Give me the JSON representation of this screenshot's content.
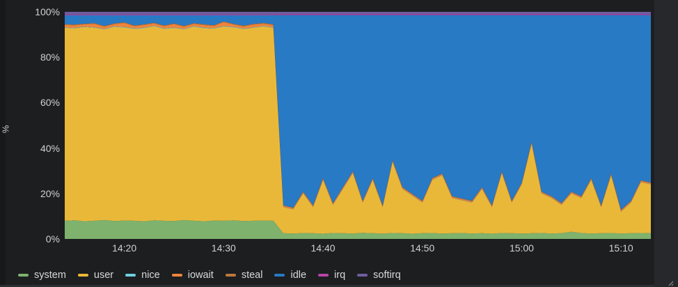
{
  "panel": {
    "background": "#1c1e20",
    "text_color": "#d0d1d2"
  },
  "y_axis": {
    "label": "%",
    "ticks": [
      "0%",
      "20%",
      "40%",
      "60%",
      "80%",
      "100%"
    ]
  },
  "x_axis": {
    "ticks": [
      "14:20",
      "14:30",
      "14:40",
      "14:50",
      "15:00",
      "15:10"
    ]
  },
  "legend": {
    "items": [
      {
        "label": "system",
        "color": "#7EB26D"
      },
      {
        "label": "user",
        "color": "#EAB839"
      },
      {
        "label": "nice",
        "color": "#6ED0E0"
      },
      {
        "label": "iowait",
        "color": "#EF843C"
      },
      {
        "label": "steal",
        "color": "#BF783A"
      },
      {
        "label": "idle",
        "color": "#287AC5"
      },
      {
        "label": "irq",
        "color": "#BA43A9"
      },
      {
        "label": "softirq",
        "color": "#705DA0"
      }
    ]
  },
  "chart_data": {
    "type": "area",
    "stacked": true,
    "unit": "percent",
    "title": "",
    "xlabel": "",
    "ylabel": "%",
    "ylim": [
      0,
      100
    ],
    "grid": false,
    "legend_position": "bottom",
    "y_ticks": [
      0,
      20,
      40,
      60,
      80,
      100
    ],
    "x_ticks": [
      "14:20",
      "14:30",
      "14:40",
      "14:50",
      "15:00",
      "15:10"
    ],
    "x": [
      "14:14",
      "14:15",
      "14:16",
      "14:17",
      "14:18",
      "14:19",
      "14:20",
      "14:21",
      "14:22",
      "14:23",
      "14:24",
      "14:25",
      "14:26",
      "14:27",
      "14:28",
      "14:29",
      "14:30",
      "14:31",
      "14:32",
      "14:33",
      "14:34",
      "14:35",
      "14:36",
      "14:37",
      "14:38",
      "14:39",
      "14:40",
      "14:41",
      "14:42",
      "14:43",
      "14:44",
      "14:45",
      "14:46",
      "14:47",
      "14:48",
      "14:49",
      "14:50",
      "14:51",
      "14:52",
      "14:53",
      "14:54",
      "14:55",
      "14:56",
      "14:57",
      "14:58",
      "14:59",
      "15:00",
      "15:01",
      "15:02",
      "15:03",
      "15:04",
      "15:05",
      "15:06",
      "15:07",
      "15:08",
      "15:09",
      "15:10",
      "15:11",
      "15:12",
      "15:13"
    ],
    "series": [
      {
        "name": "system",
        "color": "#7EB26D",
        "values": [
          8,
          8.2,
          7.8,
          8,
          8.3,
          7.9,
          8.1,
          8,
          7.8,
          8.2,
          8,
          7.9,
          8.3,
          8,
          7.8,
          8.1,
          8,
          8.2,
          7.9,
          8,
          8.1,
          8,
          2.5,
          2.4,
          2.6,
          2.5,
          2.3,
          2.6,
          2.5,
          2.4,
          2.7,
          2.5,
          2.4,
          2.6,
          2.5,
          2.3,
          2.5,
          2.6,
          2.4,
          2.5,
          2.6,
          2.4,
          2.5,
          2.3,
          2.6,
          2.5,
          2.4,
          2.5,
          2.6,
          2.4,
          2.5,
          3.2,
          2.6,
          2.4,
          2.5,
          2.6,
          2.4,
          2.5,
          2.6,
          2.5
        ]
      },
      {
        "name": "user",
        "color": "#EAB839",
        "values": [
          85,
          84.5,
          85.5,
          85,
          84,
          85.5,
          85,
          84.5,
          85,
          85.5,
          84.5,
          85,
          84,
          85.5,
          85,
          84.5,
          85.5,
          85,
          84.5,
          85,
          85.5,
          85,
          11.5,
          10.6,
          17.4,
          11.5,
          23.7,
          12.4,
          19.5,
          26.6,
          13.3,
          23.5,
          11.6,
          31.4,
          19.5,
          16.7,
          13.5,
          23.4,
          25.6,
          15.5,
          14.4,
          13.6,
          19.5,
          11.7,
          26.4,
          13.5,
          21.6,
          39.5,
          17.4,
          15.6,
          12.5,
          16.8,
          15.4,
          23.6,
          11.5,
          25.4,
          9.6,
          13.5,
          22.4,
          21.5
        ]
      },
      {
        "name": "nice",
        "color": "#6ED0E0",
        "values": [
          0.2,
          0.2,
          0.2,
          0.2,
          0.2,
          0.2,
          0.2,
          0.2,
          0.2,
          0.2,
          0.2,
          0.2,
          0.2,
          0.2,
          0.2,
          0.2,
          0.2,
          0.2,
          0.2,
          0.2,
          0.2,
          0.2,
          0.1,
          0.1,
          0.1,
          0.1,
          0.1,
          0.1,
          0.1,
          0.1,
          0.1,
          0.1,
          0.1,
          0.1,
          0.1,
          0.1,
          0.1,
          0.1,
          0.1,
          0.1,
          0.1,
          0.1,
          0.1,
          0.1,
          0.1,
          0.1,
          0.1,
          0.1,
          0.1,
          0.1,
          0.1,
          0.1,
          0.1,
          0.1,
          0.1,
          0.1,
          0.1,
          0.1,
          0.1,
          0.1
        ]
      },
      {
        "name": "iowait",
        "color": "#EF843C",
        "values": [
          1,
          1.2,
          1,
          1.5,
          1,
          1,
          1.8,
          1,
          1.2,
          1,
          1,
          1.5,
          1,
          1,
          1.2,
          1,
          1.8,
          1,
          1,
          1.2,
          1,
          1,
          0.5,
          0.5,
          0.5,
          0.5,
          0.5,
          0.5,
          0.5,
          0.5,
          0.5,
          0.5,
          0.5,
          0.5,
          0.5,
          0.5,
          0.5,
          0.5,
          0.5,
          0.5,
          0.5,
          0.5,
          0.5,
          0.5,
          0.5,
          0.5,
          0.5,
          0.5,
          0.5,
          0.5,
          0.5,
          0.5,
          0.5,
          0.5,
          0.5,
          0.5,
          0.5,
          0.5,
          0.5,
          0.5
        ]
      },
      {
        "name": "steal",
        "color": "#BF783A",
        "values": [
          0.3,
          0.3,
          0.3,
          0.3,
          0.3,
          0.3,
          0.3,
          0.3,
          0.3,
          0.3,
          0.3,
          0.3,
          0.3,
          0.3,
          0.3,
          0.3,
          0.3,
          0.3,
          0.3,
          0.3,
          0.3,
          0.3,
          0.2,
          0.2,
          0.2,
          0.2,
          0.2,
          0.2,
          0.2,
          0.2,
          0.2,
          0.2,
          0.2,
          0.2,
          0.2,
          0.2,
          0.2,
          0.2,
          0.2,
          0.2,
          0.2,
          0.2,
          0.2,
          0.2,
          0.2,
          0.2,
          0.2,
          0.2,
          0.2,
          0.2,
          0.2,
          0.2,
          0.2,
          0.2,
          0.2,
          0.2,
          0.2,
          0.2,
          0.2,
          0.2
        ]
      },
      {
        "name": "idle",
        "color": "#287AC5",
        "values": [
          4,
          4.1,
          3.7,
          3.5,
          4.7,
          3.6,
          3.1,
          4.5,
          4,
          3.3,
          4.5,
          3.6,
          4.7,
          3.5,
          4,
          4.4,
          2.7,
          3.8,
          4.6,
          3.8,
          3.4,
          4,
          83.8,
          84.8,
          77.8,
          83.8,
          71.8,
          82.8,
          75.8,
          68.8,
          81.8,
          71.8,
          83.8,
          63.8,
          75.8,
          78.8,
          81.8,
          71.8,
          69.8,
          79.8,
          80.8,
          81.8,
          75.8,
          83.8,
          68.8,
          81.8,
          73.8,
          55.8,
          77.8,
          79.8,
          82.8,
          77.8,
          79.8,
          71.8,
          83.8,
          69.8,
          85.8,
          81.8,
          72.8,
          73.8
        ]
      },
      {
        "name": "irq",
        "color": "#BA43A9",
        "values": [
          0.3,
          0.3,
          0.3,
          0.3,
          0.3,
          0.3,
          0.3,
          0.3,
          0.3,
          0.3,
          0.3,
          0.3,
          0.3,
          0.3,
          0.3,
          0.3,
          0.3,
          0.3,
          0.3,
          0.3,
          0.3,
          0.3,
          0.4,
          0.4,
          0.4,
          0.4,
          0.4,
          0.4,
          0.4,
          0.4,
          0.4,
          0.4,
          0.4,
          0.4,
          0.4,
          0.4,
          0.4,
          0.4,
          0.4,
          0.4,
          0.4,
          0.4,
          0.4,
          0.4,
          0.4,
          0.4,
          0.4,
          0.4,
          0.4,
          0.4,
          0.4,
          0.4,
          0.4,
          0.4,
          0.4,
          0.4,
          0.4,
          0.4,
          0.4,
          0.4
        ]
      },
      {
        "name": "softirq",
        "color": "#705DA0",
        "values": [
          1.2,
          1.2,
          1.2,
          1.2,
          1.2,
          1.2,
          1.2,
          1.2,
          1.2,
          1.2,
          1.2,
          1.2,
          1.2,
          1.2,
          1.2,
          1.2,
          1.2,
          1.2,
          1.2,
          1.2,
          1.2,
          1.2,
          1,
          1,
          1,
          1,
          1,
          1,
          1,
          1,
          1,
          1,
          1,
          1,
          1,
          1,
          1,
          1,
          1,
          1,
          1,
          1,
          1,
          1,
          1,
          1,
          1,
          1,
          1,
          1,
          1,
          1,
          1,
          1,
          1,
          1,
          1,
          1,
          1,
          1
        ]
      }
    ]
  }
}
